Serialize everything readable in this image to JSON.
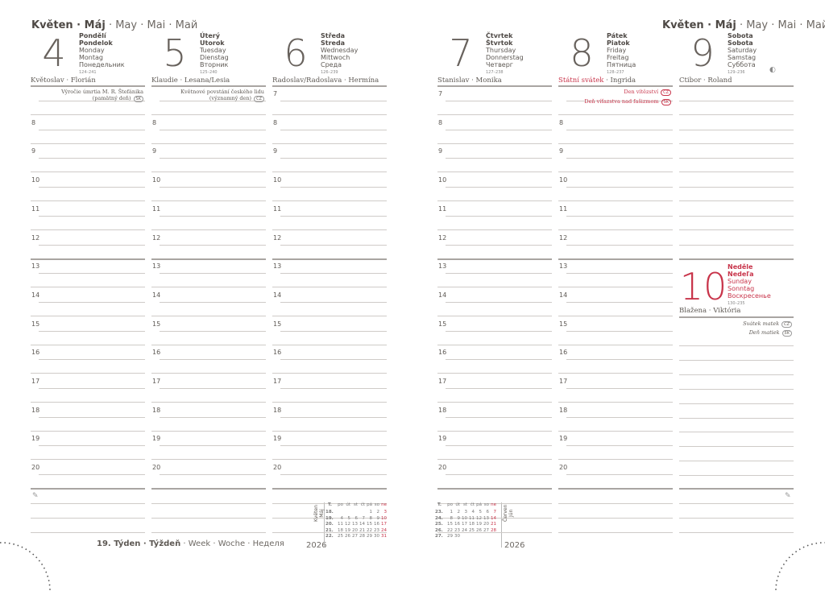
{
  "month_title": {
    "bold": "Květen · Máj",
    "rest": " · May · Mai · Май"
  },
  "week_title": {
    "bold": "19. Týden · Týždeň",
    "rest": " · Week · Woche · Неделя"
  },
  "year": "2026",
  "colors": {
    "text": "#5e5954",
    "accent_red": "#c8344a",
    "lines": "#cfcbc8"
  },
  "hours": [
    "7",
    "8",
    "9",
    "10",
    "11",
    "12",
    "13",
    "14",
    "15",
    "16",
    "17",
    "18",
    "19",
    "20"
  ],
  "days": [
    {
      "num": "4",
      "names": [
        "Pondělí",
        "Pondelok",
        "Monday",
        "Montag",
        "Понедельник"
      ],
      "count": "124–241",
      "nameday": "Květoslav · Florián",
      "events": [
        {
          "text": "Výročie úmrtia M. R. Štefánika",
          "line2": "(pamätný deň)",
          "badge": "SK"
        }
      ]
    },
    {
      "num": "5",
      "names": [
        "Úterý",
        "Utorok",
        "Tuesday",
        "Dienstag",
        "Вторник"
      ],
      "count": "125–240",
      "nameday": "Klaudie · Lesana/Lesia",
      "events": [
        {
          "text": "Květnové povstání českého lidu",
          "line2": "(významný den)",
          "badge": "CZ"
        }
      ]
    },
    {
      "num": "6",
      "names": [
        "Středa",
        "Streda",
        "Wednesday",
        "Mittwoch",
        "Среда"
      ],
      "count": "126–239",
      "nameday": "Radoslav/Radoslava · Hermína",
      "events": []
    },
    {
      "num": "7",
      "names": [
        "Čtvrtek",
        "Štvrtok",
        "Thursday",
        "Donnerstag",
        "Четверг"
      ],
      "count": "127–238",
      "nameday": "Stanislav · Monika",
      "events": []
    },
    {
      "num": "8",
      "names": [
        "Pátek",
        "Piatok",
        "Friday",
        "Freitag",
        "Пятница"
      ],
      "count": "128–237",
      "nameday_holiday": "Státní svátek",
      "nameday": " · Ingrida",
      "events": [
        {
          "text": "Den vítězství",
          "badge": "CZ"
        },
        {
          "text": "Deň víťazstva nad fašizmom",
          "badge": "SK"
        }
      ]
    },
    {
      "num": "9",
      "names": [
        "Sobota",
        "Sobota",
        "Saturday",
        "Samstag",
        "Суббота"
      ],
      "count": "129–236",
      "nameday": "Ctibor · Roland",
      "moon_icon": "first-quarter-moon-icon",
      "events": []
    },
    {
      "num": "10",
      "names": [
        "Neděle",
        "Nedeľa",
        "Sunday",
        "Sonntag",
        "Воскресенье"
      ],
      "count": "130–235",
      "nameday": "Blažena · Viktória",
      "events": [
        {
          "text": "Svátek matek",
          "badge": "CZ"
        },
        {
          "text": "Deň matiek",
          "badge": "SK"
        }
      ]
    }
  ],
  "mini_cal_may": {
    "label": [
      "Květen",
      "Máj"
    ],
    "week_hdr": "T.",
    "day_hdr": [
      "po",
      "út",
      "st",
      "čt",
      "pá",
      "so",
      "ne"
    ],
    "weeks": [
      {
        "w": "18.",
        "d": [
          "",
          "",
          "",
          "",
          "1",
          "2",
          "3"
        ]
      },
      {
        "w": "19.",
        "d": [
          "4",
          "5",
          "6",
          "7",
          "8",
          "9",
          "10"
        ]
      },
      {
        "w": "20.",
        "d": [
          "11",
          "12",
          "13",
          "14",
          "15",
          "16",
          "17"
        ]
      },
      {
        "w": "21.",
        "d": [
          "18",
          "19",
          "20",
          "21",
          "22",
          "23",
          "24"
        ]
      },
      {
        "w": "22.",
        "d": [
          "25",
          "26",
          "27",
          "28",
          "29",
          "30",
          "31"
        ]
      }
    ]
  },
  "mini_cal_june": {
    "label": [
      "Červen",
      "Jún"
    ],
    "week_hdr": "T.",
    "day_hdr": [
      "po",
      "út",
      "st",
      "čt",
      "pá",
      "so",
      "ne"
    ],
    "weeks": [
      {
        "w": "23.",
        "d": [
          "1",
          "2",
          "3",
          "4",
          "5",
          "6",
          "7"
        ]
      },
      {
        "w": "24.",
        "d": [
          "8",
          "9",
          "10",
          "11",
          "12",
          "13",
          "14"
        ]
      },
      {
        "w": "25.",
        "d": [
          "15",
          "16",
          "17",
          "18",
          "19",
          "20",
          "21"
        ]
      },
      {
        "w": "26.",
        "d": [
          "22",
          "23",
          "24",
          "25",
          "26",
          "27",
          "28"
        ]
      },
      {
        "w": "27.",
        "d": [
          "29",
          "30",
          "",
          "",
          "",
          "",
          ""
        ]
      }
    ]
  }
}
